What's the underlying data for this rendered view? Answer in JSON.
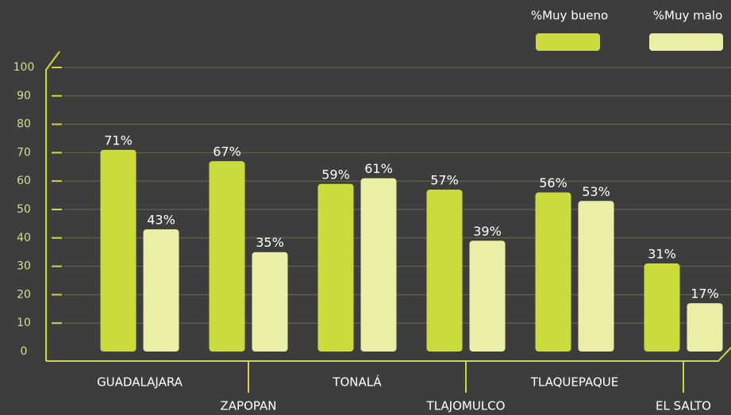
{
  "chart_data": {
    "type": "bar",
    "categories": [
      "GUADALAJARA",
      "ZAPOPAN",
      "TONALÁ",
      "TLAJOMULCO",
      "TLAQUEPAQUE",
      "EL SALTO"
    ],
    "series": [
      {
        "name": "%Muy bueno",
        "color": "#ccdb3c",
        "values": [
          71,
          67,
          59,
          57,
          56,
          31
        ],
        "value_labels": [
          "71%",
          "67%",
          "59%",
          "57%",
          "56%",
          "31%"
        ]
      },
      {
        "name": "%Muy malo",
        "color": "#eaefa5",
        "values": [
          43,
          35,
          61,
          39,
          53,
          17
        ],
        "value_labels": [
          "43%",
          "35%",
          "61%",
          "39%",
          "53%",
          "17%"
        ]
      }
    ],
    "ylim": [
      0,
      100
    ],
    "yticks": [
      0,
      10,
      20,
      30,
      40,
      50,
      60,
      70,
      80,
      90,
      100
    ],
    "grid": true,
    "legend": "top-right"
  }
}
